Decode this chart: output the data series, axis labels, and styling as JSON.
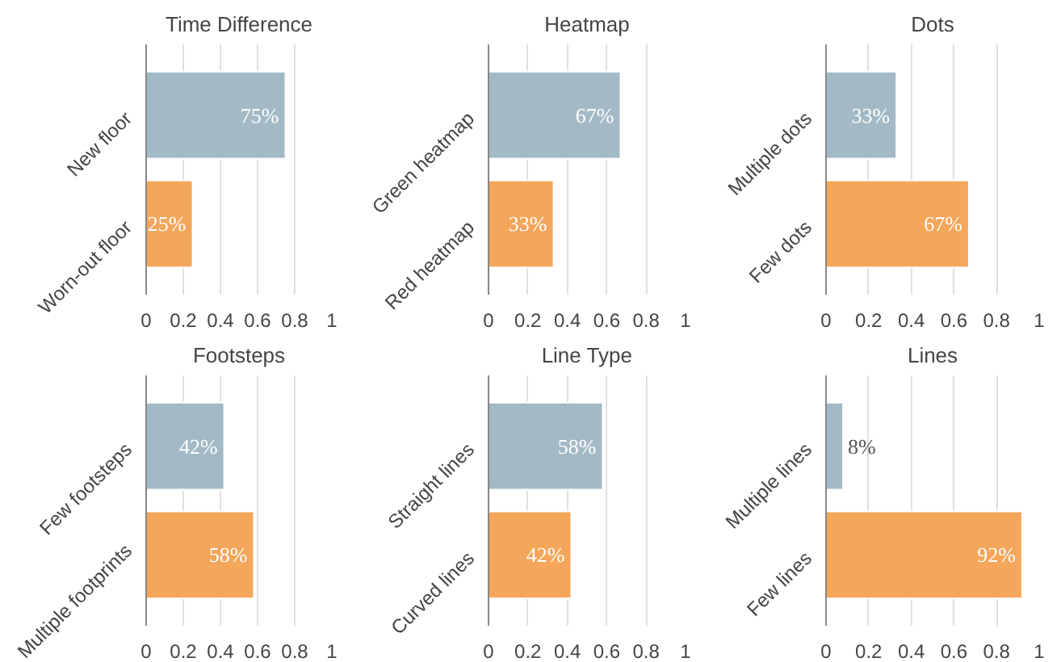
{
  "chart_data": [
    {
      "type": "bar",
      "orientation": "horizontal",
      "title": "Time Difference",
      "categories": [
        "New floor",
        "Worn-out floor"
      ],
      "values": [
        0.75,
        0.25
      ],
      "colors": [
        "#a3bac6",
        "#f4a65a"
      ],
      "value_labels": [
        "75%",
        "25%"
      ],
      "xlim": [
        0,
        1
      ],
      "xticks": [
        0,
        0.2,
        0.4,
        0.6,
        0.8,
        1
      ],
      "grid": "x"
    },
    {
      "type": "bar",
      "orientation": "horizontal",
      "title": "Heatmap",
      "categories": [
        "Green heatmap",
        "Red heatmap"
      ],
      "values": [
        0.67,
        0.33
      ],
      "colors": [
        "#a3bac6",
        "#f4a65a"
      ],
      "value_labels": [
        "67%",
        "33%"
      ],
      "xlim": [
        0,
        1
      ],
      "xticks": [
        0,
        0.2,
        0.4,
        0.6,
        0.8,
        1
      ],
      "grid": "x"
    },
    {
      "type": "bar",
      "orientation": "horizontal",
      "title": "Dots",
      "categories": [
        "Multiple dots",
        "Few dots"
      ],
      "values": [
        0.33,
        0.67
      ],
      "colors": [
        "#a3bac6",
        "#f4a65a"
      ],
      "value_labels": [
        "33%",
        "67%"
      ],
      "xlim": [
        0,
        1
      ],
      "xticks": [
        0,
        0.2,
        0.4,
        0.6,
        0.8,
        1
      ],
      "grid": "x"
    },
    {
      "type": "bar",
      "orientation": "horizontal",
      "title": "Footsteps",
      "categories": [
        "Few footsteps",
        "Multiple footprints"
      ],
      "values": [
        0.42,
        0.58
      ],
      "colors": [
        "#a3bac6",
        "#f4a65a"
      ],
      "value_labels": [
        "42%",
        "58%"
      ],
      "xlim": [
        0,
        1
      ],
      "xticks": [
        0,
        0.2,
        0.4,
        0.6,
        0.8,
        1
      ],
      "grid": "x"
    },
    {
      "type": "bar",
      "orientation": "horizontal",
      "title": "Line Type",
      "categories": [
        "Straight lines",
        "Curved lines"
      ],
      "values": [
        0.58,
        0.42
      ],
      "colors": [
        "#a3bac6",
        "#f4a65a"
      ],
      "value_labels": [
        "58%",
        "42%"
      ],
      "xlim": [
        0,
        1
      ],
      "xticks": [
        0,
        0.2,
        0.4,
        0.6,
        0.8,
        1
      ],
      "grid": "x"
    },
    {
      "type": "bar",
      "orientation": "horizontal",
      "title": "Lines",
      "categories": [
        "Multiple lines",
        "Few lines"
      ],
      "values": [
        0.08,
        0.92
      ],
      "colors": [
        "#a3bac6",
        "#f4a65a"
      ],
      "value_labels": [
        "8%",
        "92%"
      ],
      "xlim": [
        0,
        1
      ],
      "xticks": [
        0,
        0.2,
        0.4,
        0.6,
        0.8,
        1
      ],
      "grid": "x"
    }
  ]
}
